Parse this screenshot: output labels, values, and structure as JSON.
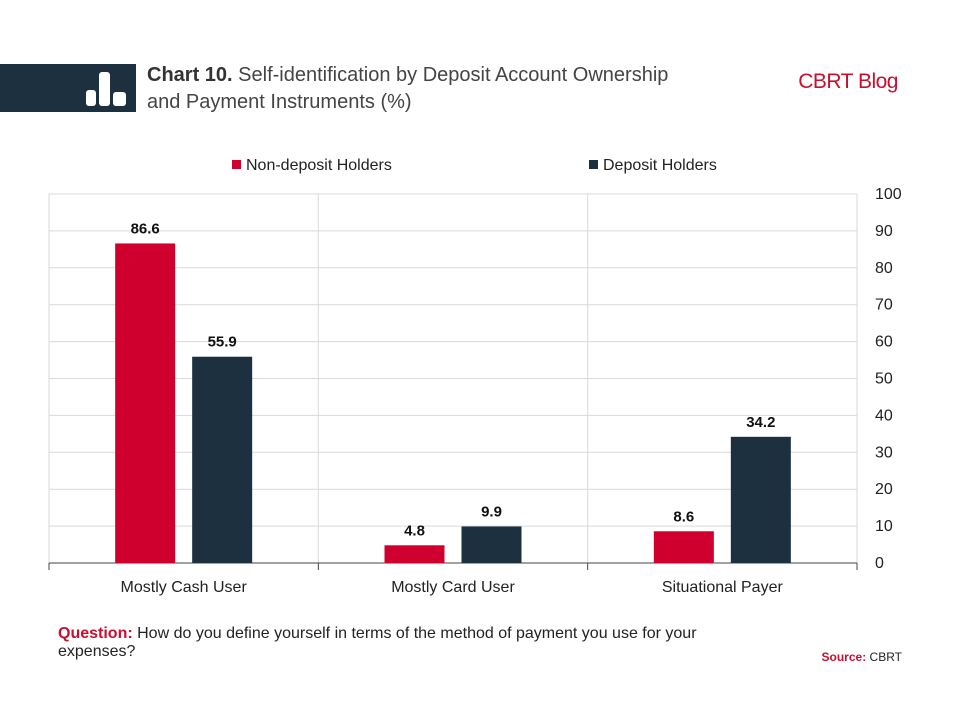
{
  "header": {
    "chart_number": "Chart 10.",
    "title": "Self-identification by Deposit Account Ownership and Payment Instruments (%)",
    "brand": "CBRT Blog",
    "logo_icon": "bar-chart-icon"
  },
  "footer": {
    "question_label": "Question:",
    "question_text": "How do you define yourself in terms of the method of payment you use for your expenses?",
    "source_label": "Source:",
    "source_text": "CBRT"
  },
  "colors": {
    "non_deposit": "#d0002e",
    "deposit": "#1d3040",
    "grid": "#d9d9d9",
    "axis": "#444444"
  },
  "chart_data": {
    "type": "bar",
    "title": "Self-identification by Deposit Account Ownership and Payment Instruments (%)",
    "categories": [
      "Mostly Cash User",
      "Mostly Card User",
      "Situational Payer"
    ],
    "series": [
      {
        "name": "Non-deposit Holders",
        "values": [
          86.6,
          4.8,
          8.6
        ]
      },
      {
        "name": "Deposit Holders",
        "values": [
          55.9,
          9.9,
          34.2
        ]
      }
    ],
    "ylim": [
      0,
      100
    ],
    "yticks": [
      0,
      10,
      20,
      30,
      40,
      50,
      60,
      70,
      80,
      90,
      100
    ],
    "yaxis_position": "right",
    "grid": true,
    "legend_position": "top"
  }
}
